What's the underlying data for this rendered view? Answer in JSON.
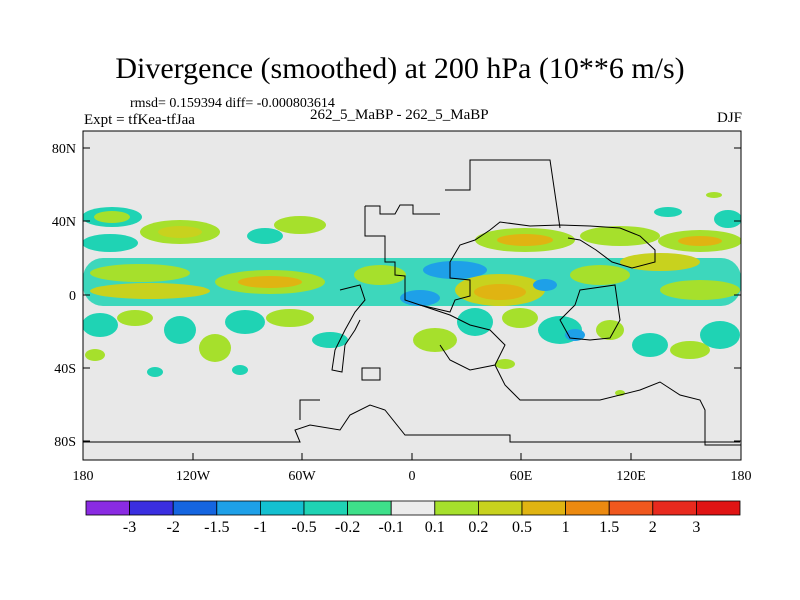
{
  "title": "Divergence (smoothed) at 200 hPa (10**6 m/s)",
  "stats": "rmsd= 0.159394 diff= -0.000803614",
  "expt": "Expt = tfKea-tfJaa",
  "center_label": "262_5_MaBP - 262_5_MaBP",
  "season": "DJF",
  "map": {
    "x_ticks": [
      "180",
      "120W",
      "60W",
      "0",
      "60E",
      "120E",
      "180"
    ],
    "y_ticks": [
      "80N",
      "40N",
      "0",
      "40S",
      "80S"
    ]
  },
  "colorbar": {
    "labels": [
      "-3",
      "-2",
      "-1.5",
      "-1",
      "-0.5",
      "-0.2",
      "-0.1",
      "0.1",
      "0.2",
      "0.5",
      "1",
      "1.5",
      "2",
      "3"
    ],
    "colors": [
      "#8a2be2",
      "#3a2ee0",
      "#1565e0",
      "#1ea0e8",
      "#14c0d0",
      "#1fd3b4",
      "#3ee08a",
      "#ececec",
      "#a6e02c",
      "#c8d21e",
      "#e0b412",
      "#ec8a10",
      "#f0581e",
      "#e82a1e",
      "#e01414"
    ]
  },
  "colors": {
    "ocean_bg": "#e8e8e8",
    "outline": "#000000"
  }
}
